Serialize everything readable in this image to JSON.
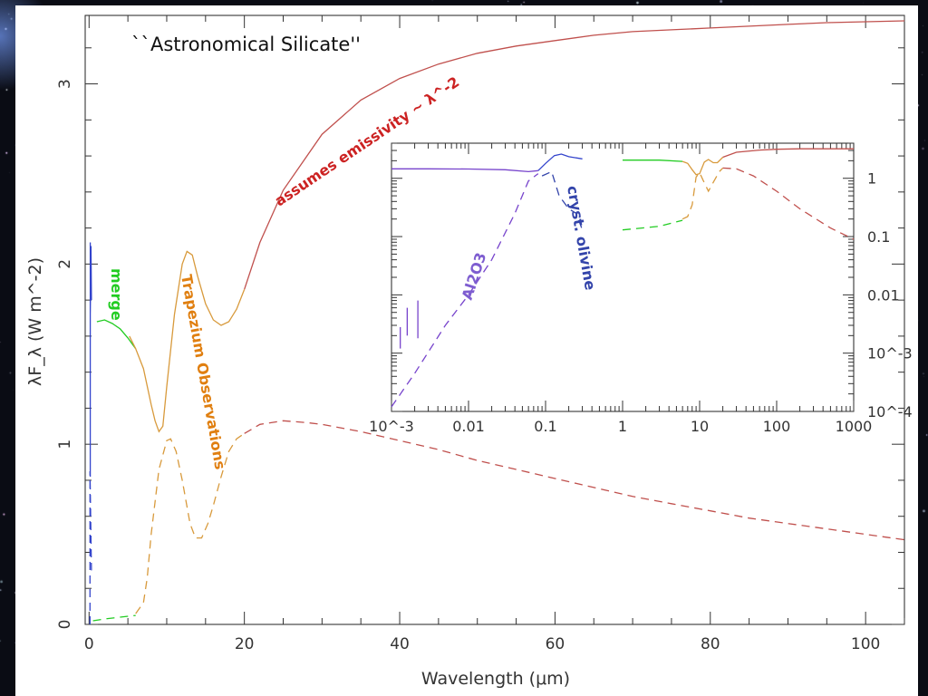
{
  "chart_data": [
    {
      "type": "line",
      "title": "``Astronomical Silicate''",
      "xlabel": "Wavelength (μm)",
      "ylabel": "λF_λ (W m^-2)",
      "xlim": [
        -0.5,
        105
      ],
      "ylim": [
        0,
        3.38
      ],
      "grid": false,
      "x_ticks": [
        0,
        20,
        40,
        60,
        80,
        100
      ],
      "y_ticks": [
        0,
        1,
        2,
        3
      ],
      "annotations": [
        {
          "text": "assumes emissivity ~ λ^-2",
          "color": "#cc2222"
        },
        {
          "text": "merge",
          "color": "#22cc22"
        },
        {
          "text": "Trapezium Observations",
          "color": "#e07f10"
        }
      ],
      "series": [
        {
          "color": "#3344cc",
          "style": "solid",
          "x": [
            0.15,
            0.15,
            0.15,
            0.2,
            0.25,
            0.3
          ],
          "y": [
            0.82,
            2.12,
            1.72,
            1.9,
            2.1,
            1.8
          ]
        },
        {
          "color": "#3344cc",
          "style": "dashed",
          "x": [
            0.12,
            0.12,
            0.3
          ],
          "y": [
            0.0,
            0.85,
            0.3
          ]
        },
        {
          "color": "#22cc22",
          "style": "solid",
          "x": [
            1,
            2,
            3,
            4,
            5,
            6
          ],
          "y": [
            1.68,
            1.69,
            1.67,
            1.64,
            1.59,
            1.53
          ]
        },
        {
          "color": "#d89a3c",
          "style": "solid",
          "x": [
            5.2,
            6,
            7,
            8,
            8.5,
            9,
            9.5,
            10,
            11,
            12,
            12.6,
            13.3,
            14,
            15,
            16,
            17,
            18,
            19,
            20
          ],
          "y": [
            1.6,
            1.53,
            1.42,
            1.22,
            1.13,
            1.07,
            1.1,
            1.32,
            1.72,
            2.0,
            2.07,
            2.05,
            1.93,
            1.78,
            1.69,
            1.66,
            1.68,
            1.75,
            1.86
          ]
        },
        {
          "color": "#c0504d",
          "style": "solid",
          "x": [
            20,
            22,
            25,
            30,
            35,
            40,
            45,
            50,
            55,
            60,
            65,
            70,
            75,
            80,
            85,
            90,
            95,
            100,
            105
          ],
          "y": [
            1.86,
            2.12,
            2.41,
            2.72,
            2.91,
            3.03,
            3.11,
            3.17,
            3.21,
            3.24,
            3.27,
            3.29,
            3.3,
            3.31,
            3.32,
            3.33,
            3.34,
            3.345,
            3.35
          ]
        },
        {
          "color": "#22cc22",
          "style": "dashed",
          "x": [
            0.5,
            2,
            4,
            6
          ],
          "y": [
            0.02,
            0.03,
            0.04,
            0.05
          ]
        },
        {
          "color": "#d89a3c",
          "style": "dashed",
          "x": [
            6,
            7,
            7.5,
            8,
            9,
            10,
            10.5,
            11.2,
            12,
            13,
            13.7,
            14.5,
            15.3,
            16,
            17,
            18,
            19,
            20
          ],
          "y": [
            0.06,
            0.12,
            0.26,
            0.5,
            0.86,
            1.02,
            1.03,
            0.96,
            0.8,
            0.56,
            0.48,
            0.48,
            0.56,
            0.66,
            0.82,
            0.96,
            1.03,
            1.06
          ]
        },
        {
          "color": "#c0504d",
          "style": "dashed",
          "x": [
            20,
            22,
            25,
            28,
            30,
            35,
            40,
            45,
            50,
            55,
            60,
            65,
            70,
            75,
            80,
            85,
            90,
            95,
            100,
            105
          ],
          "y": [
            1.06,
            1.11,
            1.13,
            1.12,
            1.11,
            1.07,
            1.02,
            0.97,
            0.91,
            0.86,
            0.81,
            0.76,
            0.71,
            0.67,
            0.63,
            0.59,
            0.56,
            0.53,
            0.5,
            0.47
          ]
        }
      ]
    },
    {
      "type": "line",
      "title": "",
      "x_scale": "log",
      "y_scale": "log",
      "xlim": [
        0.001,
        1000
      ],
      "ylim": [
        0.0001,
        4
      ],
      "x_tick_labels": [
        "10^-3",
        "0.01",
        "0.1",
        "1",
        "10",
        "100",
        "1000"
      ],
      "y_tick_labels": [
        "1",
        "0.1",
        "0.01",
        "10^-3",
        "10^-4"
      ],
      "annotations": [
        {
          "text": "Al2O3",
          "color": "#7e5dd0"
        },
        {
          "text": "cryst. olivine",
          "color": "#3344aa"
        }
      ],
      "series": [
        {
          "color": "#7744cc",
          "style": "solid",
          "x": [
            0.001,
            0.003,
            0.01,
            0.03,
            0.06,
            0.08
          ],
          "y": [
            1.45,
            1.45,
            1.44,
            1.4,
            1.3,
            1.35
          ]
        },
        {
          "color": "#3344cc",
          "style": "solid",
          "x": [
            0.08,
            0.1,
            0.13,
            0.16,
            0.2,
            0.3
          ],
          "y": [
            1.35,
            1.8,
            2.45,
            2.6,
            2.35,
            2.15
          ]
        },
        {
          "color": "#7744cc",
          "style": "dashed",
          "x": [
            0.001,
            0.002,
            0.005,
            0.01,
            0.02,
            0.04,
            0.06,
            0.08
          ],
          "y": [
            0.00012,
            0.00045,
            0.003,
            0.01,
            0.04,
            0.25,
            0.9,
            1.2
          ]
        },
        {
          "color": "#3344aa",
          "style": "dashed",
          "x": [
            0.09,
            0.12,
            0.15,
            0.2,
            0.25,
            0.3
          ],
          "y": [
            1.1,
            1.3,
            0.5,
            0.3,
            0.25,
            0.13
          ]
        },
        {
          "color": "#22cc22",
          "style": "solid",
          "x": [
            1,
            3,
            6
          ],
          "y": [
            2.05,
            2.05,
            1.95
          ]
        },
        {
          "color": "#d89a3c",
          "style": "solid",
          "x": [
            6,
            7,
            8,
            9,
            10,
            11.5,
            13,
            15,
            17,
            20
          ],
          "y": [
            1.95,
            1.8,
            1.4,
            1.15,
            1.2,
            1.9,
            2.1,
            1.85,
            1.85,
            2.3
          ]
        },
        {
          "color": "#c0504d",
          "style": "solid",
          "x": [
            20,
            30,
            60,
            100,
            200,
            500,
            1000
          ],
          "y": [
            2.3,
            2.8,
            3.05,
            3.15,
            3.2,
            3.2,
            3.2
          ]
        },
        {
          "color": "#22cc22",
          "style": "dashed",
          "x": [
            1,
            3,
            6
          ],
          "y": [
            0.13,
            0.15,
            0.19
          ]
        },
        {
          "color": "#d89a3c",
          "style": "dashed",
          "x": [
            6,
            7,
            8,
            9,
            10,
            11,
            13,
            15,
            18,
            20
          ],
          "y": [
            0.2,
            0.22,
            0.35,
            1.05,
            1.25,
            0.95,
            0.6,
            0.85,
            1.3,
            1.5
          ]
        },
        {
          "color": "#c0504d",
          "style": "dashed",
          "x": [
            20,
            30,
            50,
            100,
            200,
            500,
            1000
          ],
          "y": [
            1.5,
            1.45,
            1.1,
            0.6,
            0.3,
            0.14,
            0.09
          ]
        }
      ]
    }
  ]
}
